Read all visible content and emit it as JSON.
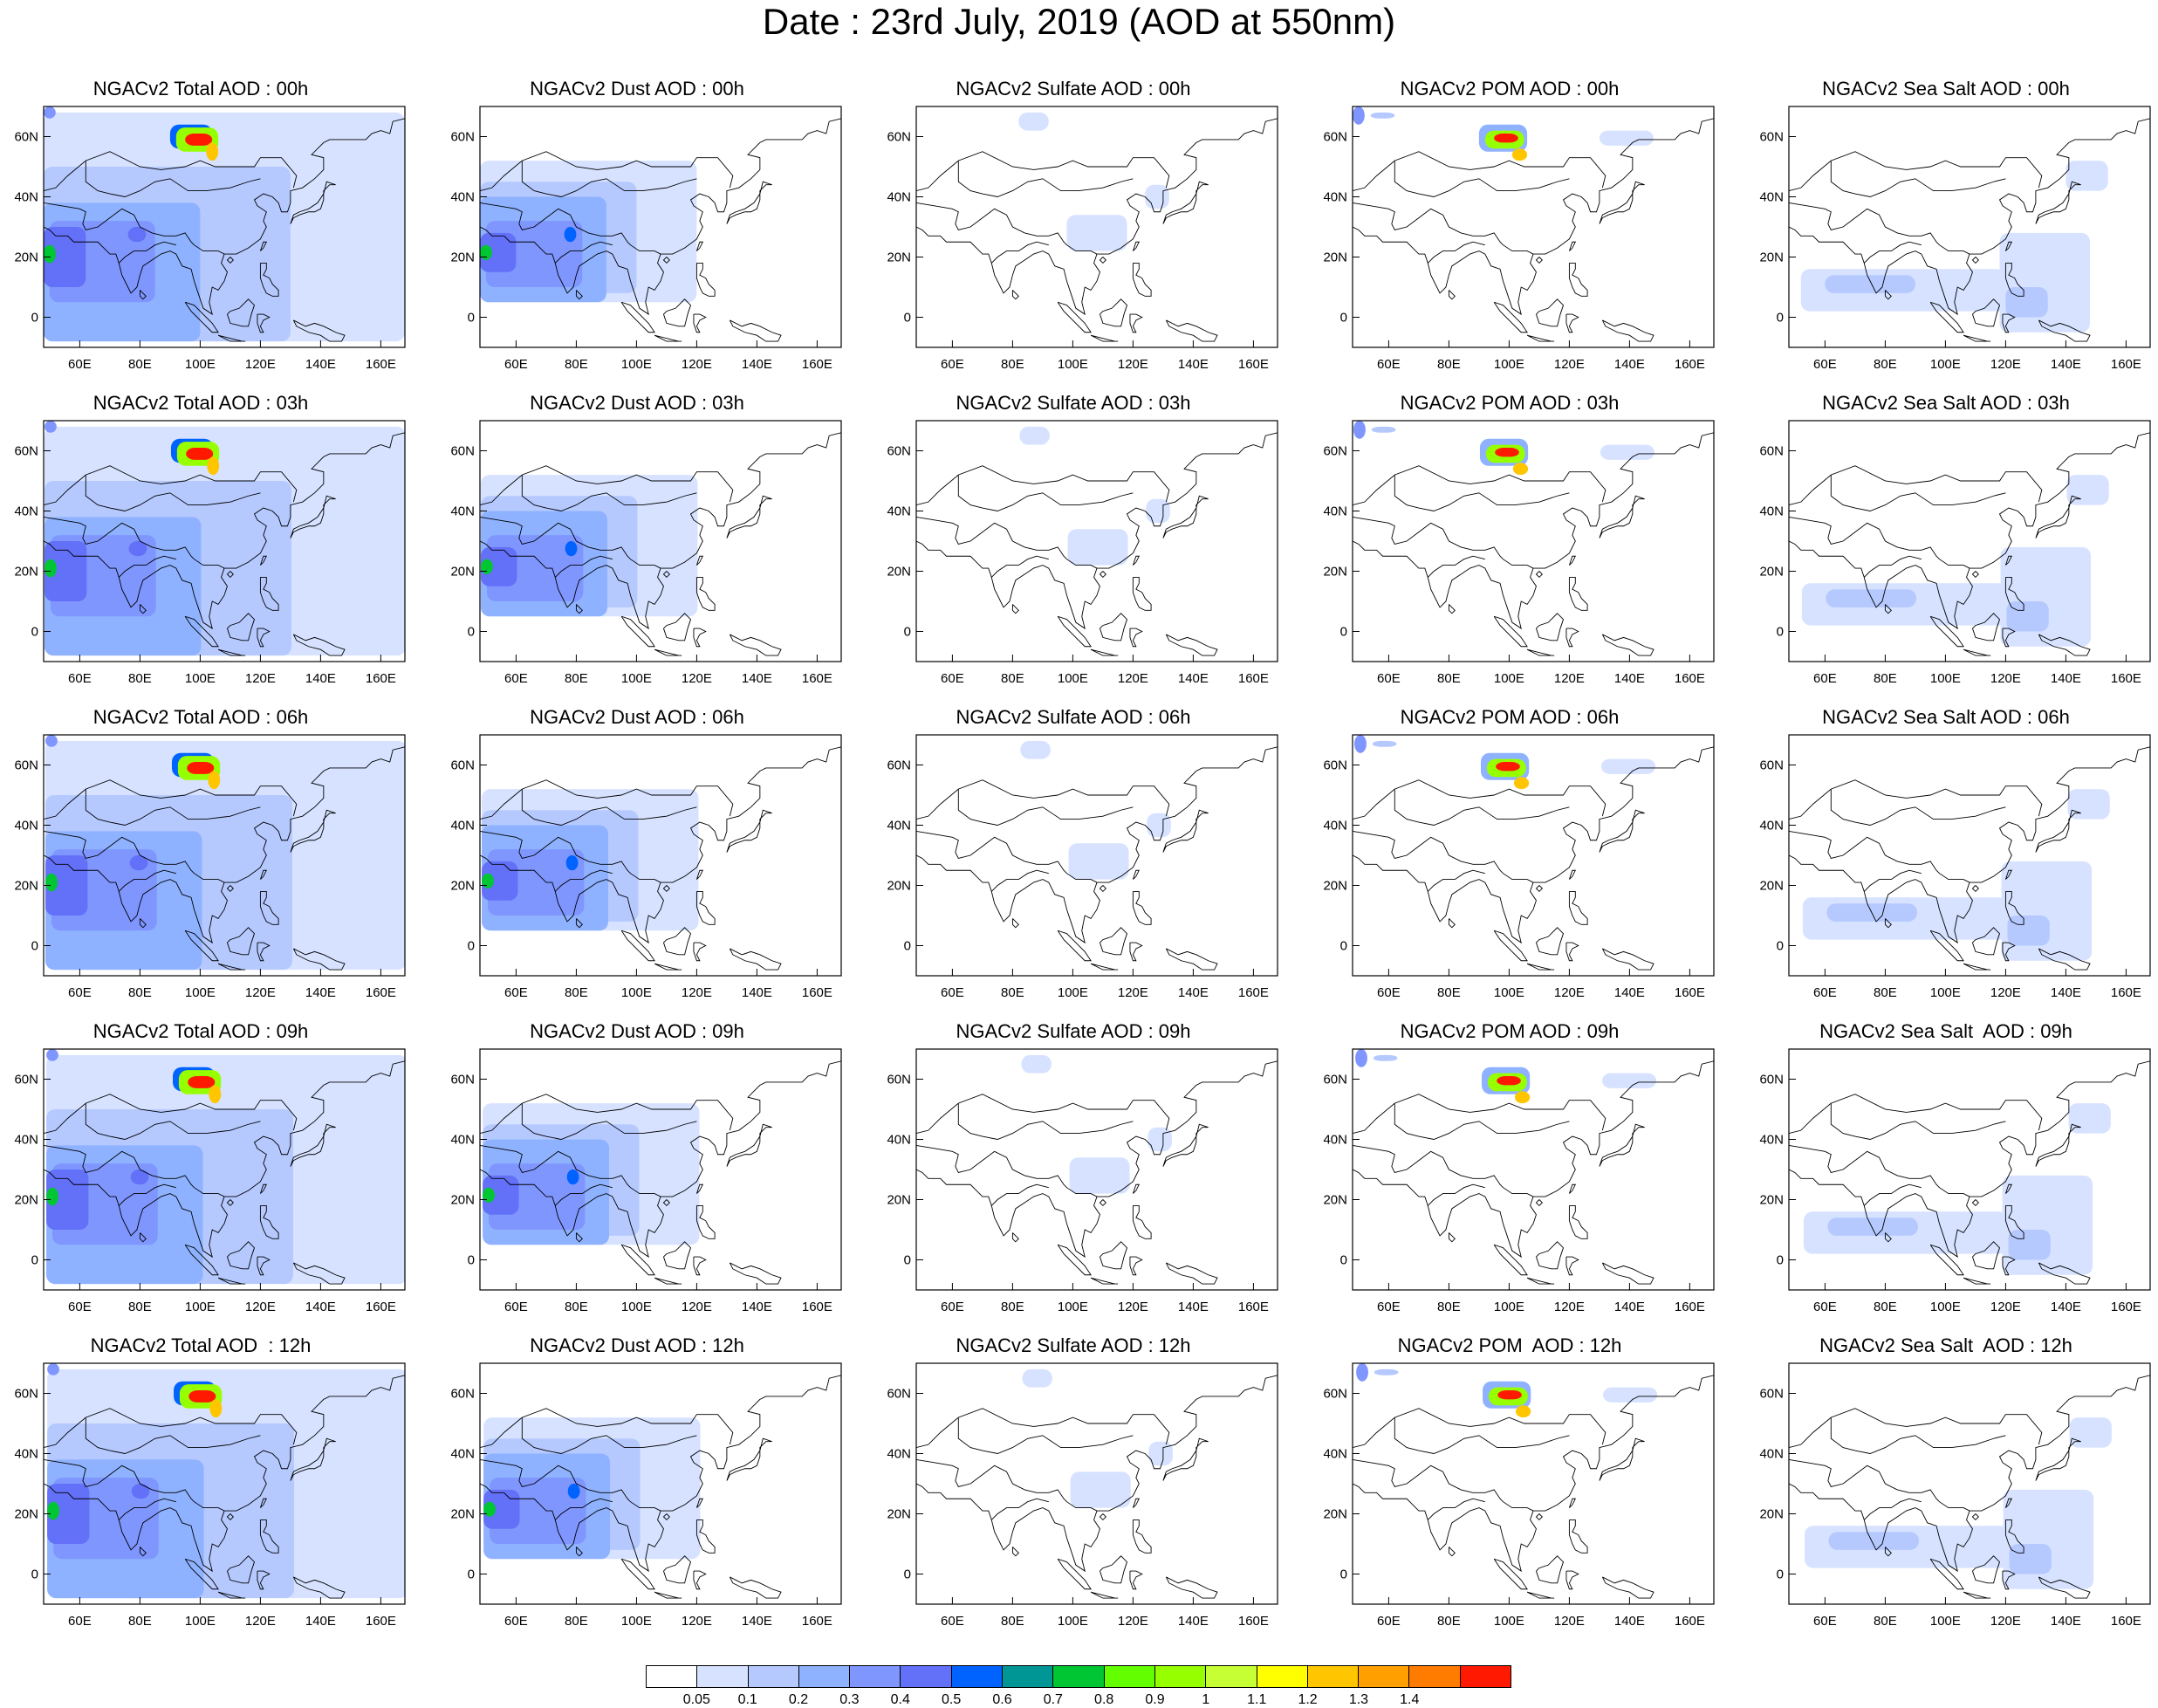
{
  "title": "Date : 23rd July, 2019 (AOD at 550nm)",
  "map": {
    "lon_range": [
      48,
      168
    ],
    "lat_range": [
      -10,
      70
    ],
    "lon_ticks": [
      "60E",
      "80E",
      "100E",
      "120E",
      "140E",
      "160E"
    ],
    "lat_ticks": [
      "60N",
      "40N",
      "20N",
      "0"
    ],
    "lon_tick_values": [
      60,
      80,
      100,
      120,
      140,
      160
    ],
    "lat_tick_values": [
      60,
      40,
      20,
      0
    ]
  },
  "panels": [
    {
      "title": "NGACv2 Total AOD : 00h",
      "species": "total",
      "hour": 0
    },
    {
      "title": "NGACv2 Dust AOD : 00h",
      "species": "dust",
      "hour": 0
    },
    {
      "title": "NGACv2 Sulfate AOD : 00h",
      "species": "sulfate",
      "hour": 0
    },
    {
      "title": "NGACv2 POM AOD : 00h",
      "species": "pom",
      "hour": 0
    },
    {
      "title": "NGACv2 Sea Salt AOD : 00h",
      "species": "seasalt",
      "hour": 0
    },
    {
      "title": "NGACv2 Total AOD : 03h",
      "species": "total",
      "hour": 3
    },
    {
      "title": "NGACv2 Dust AOD : 03h",
      "species": "dust",
      "hour": 3
    },
    {
      "title": "NGACv2 Sulfate AOD : 03h",
      "species": "sulfate",
      "hour": 3
    },
    {
      "title": "NGACv2 POM AOD : 03h",
      "species": "pom",
      "hour": 3
    },
    {
      "title": "NGACv2 Sea Salt AOD : 03h",
      "species": "seasalt",
      "hour": 3
    },
    {
      "title": "NGACv2 Total AOD : 06h",
      "species": "total",
      "hour": 6
    },
    {
      "title": "NGACv2 Dust AOD : 06h",
      "species": "dust",
      "hour": 6
    },
    {
      "title": "NGACv2 Sulfate AOD : 06h",
      "species": "sulfate",
      "hour": 6
    },
    {
      "title": "NGACv2 POM AOD : 06h",
      "species": "pom",
      "hour": 6
    },
    {
      "title": "NGACv2 Sea Salt AOD : 06h",
      "species": "seasalt",
      "hour": 6
    },
    {
      "title": "NGACv2 Total AOD : 09h",
      "species": "total",
      "hour": 9
    },
    {
      "title": "NGACv2 Dust AOD : 09h",
      "species": "dust",
      "hour": 9
    },
    {
      "title": "NGACv2 Sulfate AOD : 09h",
      "species": "sulfate",
      "hour": 9
    },
    {
      "title": "NGACv2 POM AOD : 09h",
      "species": "pom",
      "hour": 9
    },
    {
      "title": "NGACv2 Sea Salt  AOD : 09h",
      "species": "seasalt",
      "hour": 9
    },
    {
      "title": "NGACv2 Total AOD  : 12h",
      "species": "total",
      "hour": 12
    },
    {
      "title": "NGACv2 Dust AOD : 12h",
      "species": "dust",
      "hour": 12
    },
    {
      "title": "NGACv2 Sulfate AOD : 12h",
      "species": "sulfate",
      "hour": 12
    },
    {
      "title": "NGACv2 POM  AOD : 12h",
      "species": "pom",
      "hour": 12
    },
    {
      "title": "NGACv2 Sea Salt  AOD : 12h",
      "species": "seasalt",
      "hour": 12
    }
  ],
  "colorbar": {
    "labels": [
      "0.05",
      "0.1",
      "0.2",
      "0.3",
      "0.4",
      "0.5",
      "0.6",
      "0.7",
      "0.8",
      "0.9",
      "1",
      "1.1",
      "1.2",
      "1.3",
      "1.4"
    ],
    "colors": [
      "#ffffff",
      "#d6e2ff",
      "#b5c9ff",
      "#8eb2ff",
      "#7f96ff",
      "#6370f8",
      "#0063ff",
      "#009696",
      "#00c633",
      "#63ff00",
      "#96ff00",
      "#c6ff33",
      "#ffff00",
      "#ffc600",
      "#ffa000",
      "#ff7c00",
      "#ff1900"
    ]
  }
}
